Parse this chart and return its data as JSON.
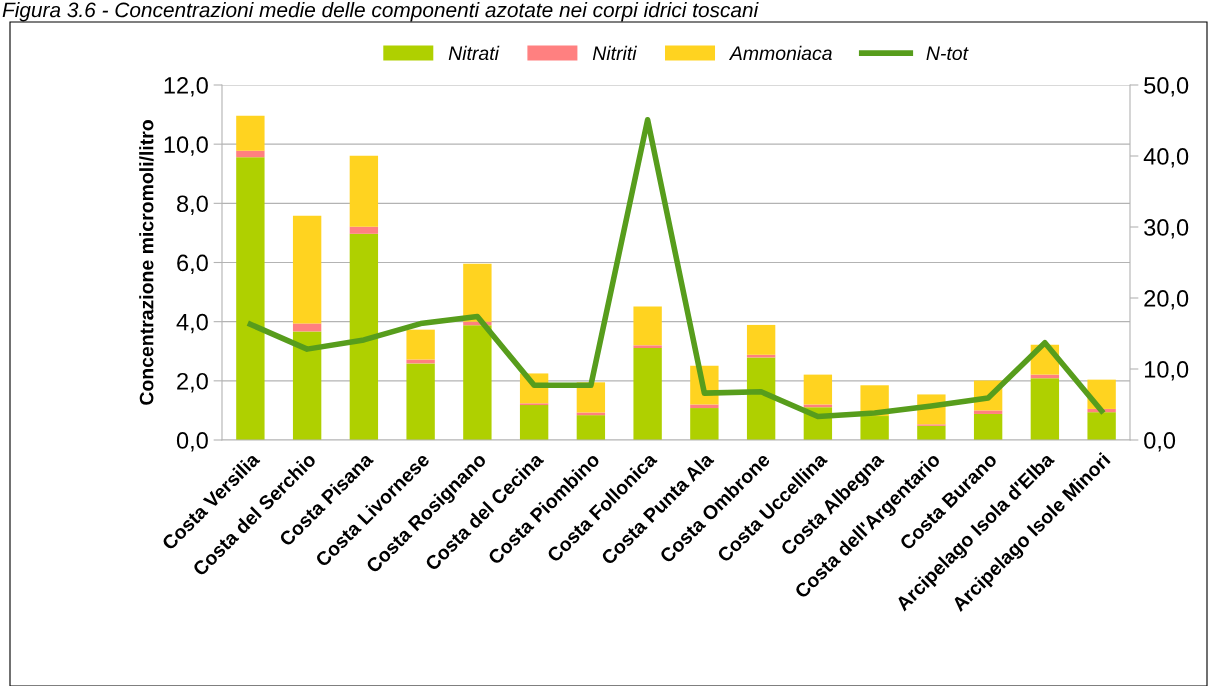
{
  "chart_data": {
    "type": "bar",
    "stacked": true,
    "title": "Figura 3.6 - Concentrazioni medie delle componenti azotate nei corpi idrici toscani",
    "ylabel": "Concentrazione micromoli/litro",
    "categories": [
      "Costa Versilia",
      "Costa del Serchio",
      "Costa Pisana",
      "Costa Livornese",
      "Costa Rosignano",
      "Costa del Cecina",
      "Costa Piombino",
      "Costa Follonica",
      "Costa Punta Ala",
      "Costa Ombrone",
      "Costa Uccellina",
      "Costa Albegna",
      "Costa dell'Argentario",
      "Costa Burano",
      "Arcipelago Isola d'Elba",
      "Arcipelago Isole Minori"
    ],
    "series": [
      {
        "name": "Nitrati",
        "color": "#afd000",
        "values": [
          9.56,
          3.67,
          6.97,
          2.59,
          3.88,
          1.18,
          0.84,
          3.11,
          1.08,
          2.79,
          1.11,
          0.81,
          0.48,
          0.88,
          2.09,
          0.94
        ]
      },
      {
        "name": "Nitriti",
        "color": "#ff8080",
        "values": [
          0.22,
          0.27,
          0.24,
          0.13,
          0.12,
          0.06,
          0.09,
          0.09,
          0.12,
          0.09,
          0.09,
          null,
          0.05,
          0.12,
          0.12,
          0.11
        ]
      },
      {
        "name": "Ammoniaca",
        "color": "#ffd320",
        "values": [
          1.18,
          3.64,
          2.4,
          1.01,
          1.96,
          1.01,
          1.02,
          1.31,
          1.31,
          1.01,
          1.01,
          1.04,
          1.01,
          1.01,
          1.01,
          0.99
        ]
      },
      {
        "name": "N-tot",
        "type": "line",
        "axis": "y2",
        "color": "#579d1c",
        "values": [
          16.3,
          12.8,
          14.1,
          16.4,
          17.4,
          7.7,
          7.7,
          45.1,
          6.6,
          6.8,
          3.3,
          3.8,
          4.8,
          5.9,
          13.7,
          4.1
        ]
      }
    ],
    "ylim": [
      0,
      12
    ],
    "yticks": [
      {
        "value": 0,
        "label": "0,0"
      },
      {
        "value": 2,
        "label": "2,0"
      },
      {
        "value": 4,
        "label": "4,0"
      },
      {
        "value": 6,
        "label": "6,0"
      },
      {
        "value": 8,
        "label": "8,0"
      },
      {
        "value": 10,
        "label": "10,0"
      },
      {
        "value": 12,
        "label": "12,0"
      }
    ],
    "y2lim": [
      0,
      50
    ],
    "y2ticks": [
      {
        "value": 0,
        "label": "0,0"
      },
      {
        "value": 10,
        "label": "10,0"
      },
      {
        "value": 20,
        "label": "20,0"
      },
      {
        "value": 30,
        "label": "30,0"
      },
      {
        "value": 40,
        "label": "40,0"
      },
      {
        "value": 50,
        "label": "50,0"
      }
    ],
    "grid": "y",
    "legend": "top",
    "marker": "none",
    "line_style": "solid"
  }
}
